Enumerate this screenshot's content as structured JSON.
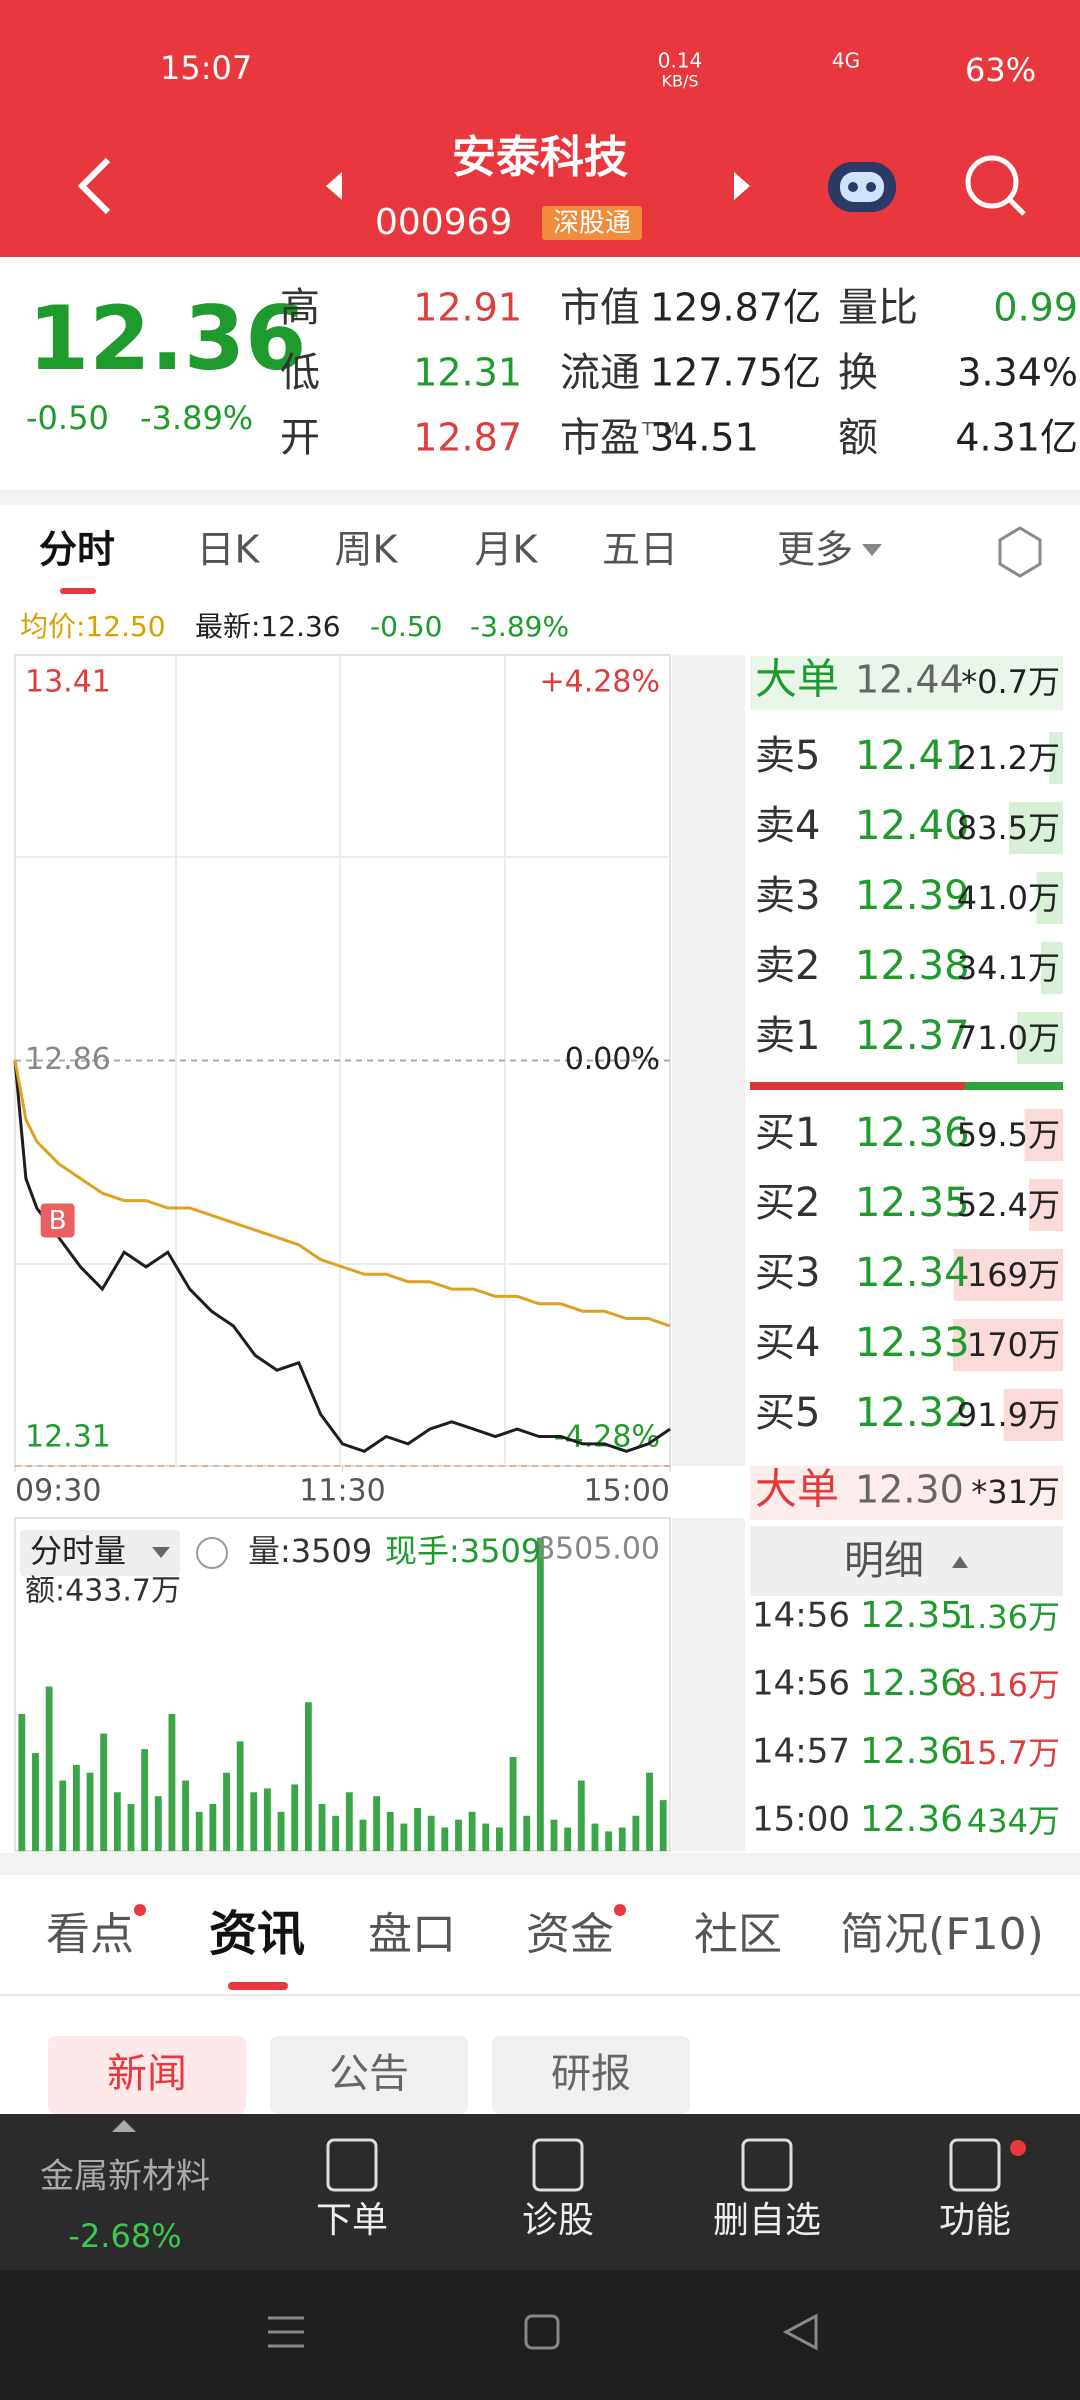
{
  "status_bar": {
    "time": "15:07",
    "net_speed": "0.14",
    "net_unit": "KB/S",
    "network": "4G",
    "battery": "63%"
  },
  "header": {
    "title": "安泰科技",
    "code": "000969",
    "tag": "深股通"
  },
  "quote": {
    "price": "12.36",
    "change": "-0.50",
    "change_pct": "-3.89%",
    "stats": [
      [
        {
          "label": "高",
          "value": "12.91",
          "color": "#e03c3c"
        },
        {
          "label": "低",
          "value": "12.31",
          "color": "#1f9a2c"
        },
        {
          "label": "开",
          "value": "12.87",
          "color": "#e03c3c"
        }
      ],
      [
        {
          "label": "市值",
          "value": "129.87亿",
          "color": "#222222"
        },
        {
          "label": "流通",
          "value": "127.75亿",
          "color": "#222222"
        },
        {
          "label": "市盈",
          "sup": "TTM",
          "value": "34.51",
          "color": "#222222"
        }
      ],
      [
        {
          "label": "量比",
          "value": "0.99",
          "color": "#1f9a2c"
        },
        {
          "label": "换",
          "value": "3.34%",
          "color": "#222222"
        },
        {
          "label": "额",
          "value": "4.31亿",
          "color": "#222222"
        }
      ]
    ]
  },
  "tabs": [
    "分时",
    "日K",
    "周K",
    "月K",
    "五日",
    "更多"
  ],
  "summary": {
    "avg": "均价:12.50",
    "latest": "最新:12.36",
    "change": "-0.50",
    "change_pct": "-3.89%"
  },
  "chart_data": [
    {
      "type": "line",
      "x": [
        0,
        4,
        8,
        16,
        24,
        32,
        40,
        48,
        56,
        64,
        72,
        80,
        88,
        96,
        104,
        112,
        120,
        128,
        136,
        144,
        152,
        160,
        168,
        176,
        184,
        192,
        200,
        208,
        216,
        224,
        232,
        240
      ],
      "xlim": [
        0,
        240
      ],
      "xticks": [
        {
          "value": 0,
          "label": "09:30"
        },
        {
          "value": 120,
          "label": "11:30"
        },
        {
          "value": 240,
          "label": "15:00"
        }
      ],
      "ylim": [
        12.31,
        13.41
      ],
      "yticks": [
        13.41,
        12.86,
        12.31
      ],
      "pct_labels": [
        "+4.28%",
        "0.00%",
        "-4.28%"
      ],
      "marker_label": "B",
      "series": [
        {
          "color": "#1e1e1e",
          "values": [
            12.86,
            12.7,
            12.66,
            12.62,
            12.58,
            12.55,
            12.6,
            12.58,
            12.6,
            12.55,
            12.52,
            12.5,
            12.46,
            12.44,
            12.45,
            12.38,
            12.34,
            12.33,
            12.35,
            12.34,
            12.36,
            12.37,
            12.36,
            12.35,
            12.36,
            12.35,
            12.35,
            12.34,
            12.34,
            12.33,
            12.34,
            12.36
          ]
        },
        {
          "color": "#e0a020",
          "values": [
            12.86,
            12.78,
            12.75,
            12.72,
            12.7,
            12.68,
            12.67,
            12.67,
            12.66,
            12.66,
            12.65,
            12.64,
            12.63,
            12.62,
            12.61,
            12.59,
            12.58,
            12.57,
            12.57,
            12.56,
            12.56,
            12.55,
            12.55,
            12.54,
            12.54,
            12.53,
            12.53,
            12.52,
            12.52,
            12.51,
            12.51,
            12.5
          ]
        }
      ]
    },
    {
      "type": "bar",
      "title": "分时量",
      "volume": "量:3509",
      "last_lot": "现手:3509",
      "amount": "额:433.7万",
      "color": "#3aa648",
      "ylim": [
        0,
        8505
      ],
      "yticks": [
        {
          "value": 8505,
          "label": "8505.00"
        }
      ],
      "values": [
        3500,
        2500,
        4200,
        1800,
        2200,
        2000,
        3000,
        1500,
        1200,
        2600,
        1400,
        3500,
        1800,
        1000,
        1200,
        2000,
        2800,
        1500,
        1600,
        1000,
        1700,
        3800,
        1200,
        900,
        1500,
        800,
        1400,
        1000,
        700,
        1100,
        900,
        600,
        800,
        1000,
        700,
        600,
        2400,
        900,
        8000,
        800,
        600,
        1800,
        700,
        500,
        600,
        900,
        2000,
        1300
      ]
    }
  ],
  "order_book": {
    "big_sell": {
      "label": "大单",
      "price": "12.44",
      "vol": "*0.7万"
    },
    "asks": [
      {
        "label": "卖5",
        "price": "12.41",
        "vol": "21.2万"
      },
      {
        "label": "卖4",
        "price": "12.40",
        "vol": "83.5万"
      },
      {
        "label": "卖3",
        "price": "12.39",
        "vol": "41.0万"
      },
      {
        "label": "卖2",
        "price": "12.38",
        "vol": "34.1万"
      },
      {
        "label": "卖1",
        "price": "12.37",
        "vol": "71.0万"
      }
    ],
    "bids": [
      {
        "label": "买1",
        "price": "12.36",
        "vol": "59.5万"
      },
      {
        "label": "买2",
        "price": "12.35",
        "vol": "52.4万"
      },
      {
        "label": "买3",
        "price": "12.34",
        "vol": "169万"
      },
      {
        "label": "买4",
        "price": "12.33",
        "vol": "170万"
      },
      {
        "label": "买5",
        "price": "12.32",
        "vol": "91.9万"
      }
    ],
    "big_buy": {
      "label": "大单",
      "price": "12.30",
      "vol": "*31万"
    },
    "detail_title": "明细",
    "trades": [
      {
        "time": "14:56",
        "price": "12.35",
        "vol": "1.36万",
        "color": "#1f9a2c"
      },
      {
        "time": "14:56",
        "price": "12.36",
        "vol": "8.16万",
        "color": "#e03c3c"
      },
      {
        "time": "14:57",
        "price": "12.36",
        "vol": "15.7万",
        "color": "#e03c3c"
      },
      {
        "time": "15:00",
        "price": "12.36",
        "vol": "434万",
        "color": "#1f9a2c"
      }
    ]
  },
  "bottom": {
    "tabs": [
      "看点",
      "资讯",
      "盘口",
      "资金",
      "社区",
      "简况(F10)"
    ],
    "sub_tabs": [
      "新闻",
      "公告",
      "研报"
    ],
    "nav": {
      "sector": "金属新材料",
      "sector_change": "-2.68%",
      "items": [
        "下单",
        "诊股",
        "删自选",
        "功能"
      ]
    }
  }
}
